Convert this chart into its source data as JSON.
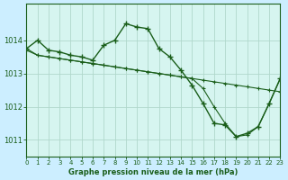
{
  "title": "Graphe pression niveau de la mer (hPa)",
  "background_color": "#cceeff",
  "plot_bg_color": "#d6f5f0",
  "grid_color": "#b0d8cc",
  "line_color": "#1a5e1a",
  "xlim": [
    0,
    23
  ],
  "ylim": [
    1010.5,
    1015.1
  ],
  "yticks": [
    1011,
    1012,
    1013,
    1014
  ],
  "xticks": [
    0,
    1,
    2,
    3,
    4,
    5,
    6,
    7,
    8,
    9,
    10,
    11,
    12,
    13,
    14,
    15,
    16,
    17,
    18,
    19,
    20,
    21,
    22,
    23
  ],
  "series1_x": [
    0,
    1,
    2,
    3,
    4,
    5,
    6,
    7,
    8,
    9,
    10,
    11,
    12,
    13,
    14,
    15,
    16,
    17,
    18,
    19,
    20,
    21,
    22,
    23
  ],
  "series1_y": [
    1013.75,
    1014.0,
    1013.7,
    1013.65,
    1013.55,
    1013.5,
    1013.4,
    1013.85,
    1014.0,
    1014.5,
    1014.4,
    1014.35,
    1013.75,
    1013.5,
    1013.1,
    1012.65,
    1012.1,
    1011.5,
    1011.45,
    1011.1,
    1011.2,
    1011.4,
    1012.1,
    1012.85
  ],
  "series2_x": [
    0,
    1,
    2,
    3,
    4,
    5,
    6,
    7,
    8,
    9,
    10,
    11,
    12,
    13,
    14,
    15,
    16,
    17,
    18,
    19,
    20,
    21,
    22,
    23
  ],
  "series2_y": [
    1013.75,
    1013.55,
    1013.5,
    1013.45,
    1013.4,
    1013.35,
    1013.3,
    1013.25,
    1013.2,
    1013.15,
    1013.1,
    1013.05,
    1013.0,
    1012.95,
    1012.9,
    1012.85,
    1012.8,
    1012.75,
    1012.7,
    1012.65,
    1012.6,
    1012.55,
    1012.5,
    1012.45
  ],
  "series3_x": [
    0,
    1,
    2,
    3,
    4,
    5,
    6,
    7,
    8,
    9,
    10,
    11,
    12,
    13,
    14,
    15,
    16,
    17,
    18,
    19,
    20,
    21,
    22,
    23
  ],
  "series3_y": [
    1013.7,
    1013.55,
    1013.5,
    1013.45,
    1013.4,
    1013.35,
    1013.3,
    1013.25,
    1013.2,
    1013.15,
    1013.1,
    1013.05,
    1013.0,
    1012.95,
    1012.9,
    1012.85,
    1012.55,
    1012.0,
    1011.5,
    1011.1,
    1011.15,
    1011.4,
    1012.1,
    1012.85
  ]
}
